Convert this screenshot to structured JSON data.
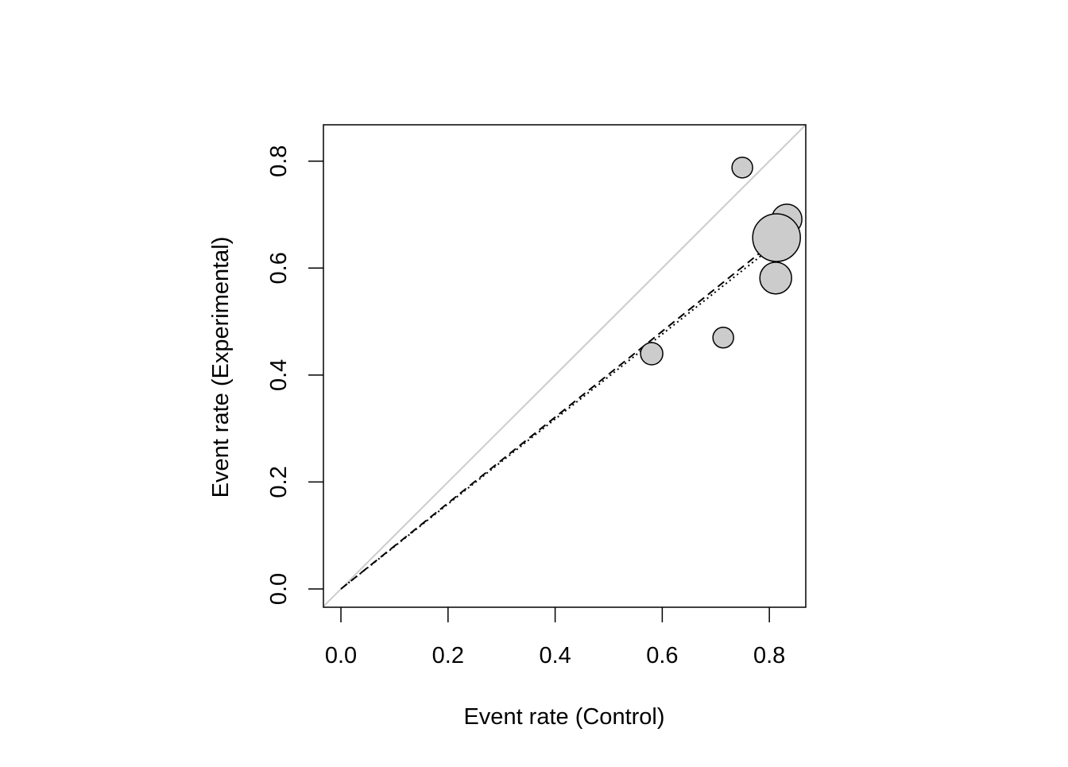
{
  "chart_data": {
    "type": "scatter",
    "x_label": "Event rate (Control)",
    "y_label": "Event rate (Experimental)",
    "x": [
      0.7495,
      0.8326,
      0.8134,
      0.8119,
      0.7139,
      0.5803
    ],
    "values": [
      0.788,
      0.6914,
      0.657,
      0.5814,
      0.47,
      0.44
    ],
    "sizes": [
      13,
      19,
      30,
      20,
      13,
      14
    ],
    "color": "#cccccc",
    "xlim": [
      -0.0327,
      0.868
    ],
    "ylim": [
      -0.0342,
      0.868
    ],
    "xticks": [
      {
        "value": 0,
        "label": "0.0"
      },
      0.2,
      0.4,
      0.6,
      0.8
    ],
    "yticks": [
      {
        "value": 0,
        "label": "0.0"
      },
      0.2,
      0.4,
      0.6,
      0.8
    ],
    "lines": [
      {
        "x": [
          -0.0327,
          0.868
        ],
        "y": [
          -0.0327,
          0.868
        ],
        "color": "#cccccc",
        "style": "solid"
      },
      {
        "x": [
          0,
          0.833
        ],
        "y": [
          0,
          0.669
        ],
        "color": "#000000",
        "style": "dashed"
      },
      {
        "x": [
          0,
          0.826
        ],
        "y": [
          0,
          0.656
        ],
        "color": "#000000",
        "style": "dotted"
      }
    ]
  }
}
